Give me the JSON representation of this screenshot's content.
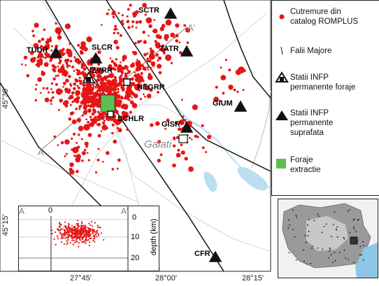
{
  "map": {
    "cities": [
      {
        "name": "Galati"
      }
    ],
    "stations": [
      {
        "code": "SCTR",
        "type": "surface"
      },
      {
        "code": "TUDR",
        "type": "surface"
      },
      {
        "code": "SLCR",
        "type": "surface"
      },
      {
        "code": "TATR",
        "type": "surface"
      },
      {
        "code": "IZVRR",
        "type": "borehole"
      },
      {
        "code": "NEGRR",
        "type": "borehole"
      },
      {
        "code": "SCHLR",
        "type": "borehole"
      },
      {
        "code": "GIUM",
        "type": "surface"
      },
      {
        "code": "GISR",
        "type": "surface"
      },
      {
        "code": "CFR",
        "type": "surface"
      }
    ],
    "profile_labels": {
      "start": "A",
      "end": "A'"
    },
    "lat_ticks": [
      "45°30'",
      "45°15'"
    ],
    "lon_ticks": [
      "27°45'",
      "28°00'",
      "28°15'"
    ]
  },
  "inset_section": {
    "left_label": "A",
    "right_label": "A'",
    "x_tick": "0",
    "ylabel": "depth (km)",
    "y_ticks": [
      "0",
      "10",
      "20"
    ]
  },
  "legend": {
    "items": [
      {
        "label_lines": [
          "Cutremure din",
          "catalog ROMPLUS"
        ]
      },
      {
        "label_lines": [
          "Falii Majore"
        ]
      },
      {
        "label_lines": [
          "Statii INFP",
          "permanente foraje"
        ]
      },
      {
        "label_lines": [
          "Statii INFP",
          "permanente",
          "suprafata"
        ]
      },
      {
        "label_lines": [
          "Foraje",
          "extractie"
        ]
      }
    ]
  },
  "colors": {
    "quake": "#e51616",
    "fault": "#111111",
    "river": "#b9dff0",
    "drill": "#5cbf52",
    "road": "#c5ccd6"
  }
}
